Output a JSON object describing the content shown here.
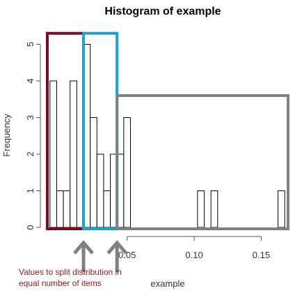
{
  "chart_data": {
    "type": "bar",
    "title": "Histogram of example",
    "xlabel": "example",
    "ylabel": "Frequency",
    "xlim": [
      -0.01,
      0.17
    ],
    "ylim": [
      0,
      5
    ],
    "xticks": [
      0.05,
      0.1,
      0.15
    ],
    "xtick_labels": [
      "0.05",
      "0.10",
      "0.15"
    ],
    "yticks": [
      0,
      1,
      2,
      3,
      4,
      5
    ],
    "bin_width": 0.005,
    "bins": [
      {
        "start": -0.0075,
        "end": -0.0025,
        "count": 4
      },
      {
        "start": -0.0025,
        "end": 0.0025,
        "count": 1
      },
      {
        "start": 0.0025,
        "end": 0.0075,
        "count": 1
      },
      {
        "start": 0.0075,
        "end": 0.0125,
        "count": 4
      },
      {
        "start": 0.0125,
        "end": 0.0175,
        "count": 0
      },
      {
        "start": 0.0175,
        "end": 0.0225,
        "count": 5
      },
      {
        "start": 0.0225,
        "end": 0.0275,
        "count": 3
      },
      {
        "start": 0.0275,
        "end": 0.0325,
        "count": 2
      },
      {
        "start": 0.0325,
        "end": 0.0375,
        "count": 1
      },
      {
        "start": 0.0375,
        "end": 0.0425,
        "count": 2
      },
      {
        "start": 0.0425,
        "end": 0.0475,
        "count": 2
      },
      {
        "start": 0.0475,
        "end": 0.0525,
        "count": 3
      },
      {
        "start": 0.1025,
        "end": 0.1075,
        "count": 1
      },
      {
        "start": 0.1125,
        "end": 0.1175,
        "count": 1
      },
      {
        "start": 0.1625,
        "end": 0.1675,
        "count": 1
      }
    ],
    "annotation": {
      "text_line1": "Values to split distribution in",
      "text_line2": "equal number of items",
      "color": "#8b1a1a"
    },
    "highlight_boxes": [
      {
        "color": "#7a0a1e",
        "x_range": [
          -0.0095,
          0.0175
        ],
        "y_range": [
          0,
          5.3
        ]
      },
      {
        "color": "#1ea0d2",
        "x_range": [
          0.0175,
          0.0425
        ],
        "y_range": [
          0,
          5.3
        ]
      },
      {
        "color": "#808080",
        "x_range": [
          0.0425,
          0.17
        ],
        "y_range": [
          0,
          3.6
        ]
      }
    ],
    "arrow_color": "#808080",
    "arrow_positions": [
      0.0175,
      0.0425
    ]
  }
}
